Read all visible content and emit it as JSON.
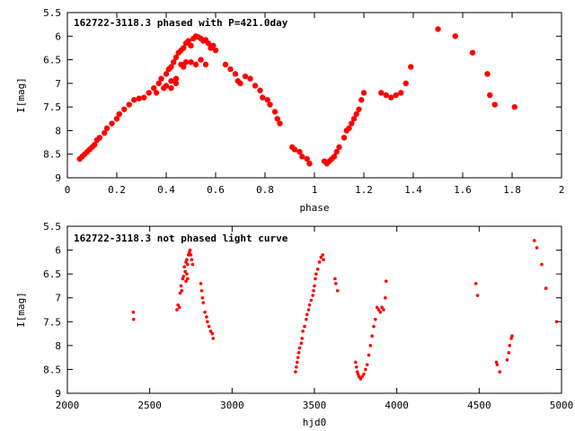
{
  "chart_data": [
    {
      "type": "scatter",
      "title": "162722-3118.3 phased with P=421.0day",
      "xlabel": "phase",
      "ylabel": "I[mag]",
      "xlim": [
        0,
        2
      ],
      "ylim": [
        9,
        5.5
      ],
      "y_inverted": true,
      "xticks": [
        0,
        0.2,
        0.4,
        0.6,
        0.8,
        1,
        1.2,
        1.4,
        1.6,
        1.8,
        2
      ],
      "xtick_labels": [
        "0",
        "0.2",
        "0.4",
        "0.6",
        "0.8",
        "1",
        "1.2",
        "1.4",
        "1.6",
        "1.8",
        "2"
      ],
      "yticks": [
        5.5,
        6,
        6.5,
        7,
        7.5,
        8,
        8.5,
        9
      ],
      "ytick_labels": [
        "5.5",
        "6",
        "6.5",
        "7",
        "7.5",
        "8",
        "8.5",
        "9"
      ],
      "marker_color": "#ff0000",
      "grid": false,
      "points": [
        [
          0.05,
          8.6
        ],
        [
          0.06,
          8.55
        ],
        [
          0.07,
          8.5
        ],
        [
          0.08,
          8.45
        ],
        [
          0.09,
          8.4
        ],
        [
          0.1,
          8.35
        ],
        [
          0.11,
          8.3
        ],
        [
          0.12,
          8.2
        ],
        [
          0.13,
          8.15
        ],
        [
          0.15,
          8.05
        ],
        [
          0.16,
          7.95
        ],
        [
          0.18,
          7.85
        ],
        [
          0.2,
          7.75
        ],
        [
          0.21,
          7.65
        ],
        [
          0.23,
          7.55
        ],
        [
          0.25,
          7.45
        ],
        [
          0.27,
          7.35
        ],
        [
          0.29,
          7.32
        ],
        [
          0.31,
          7.3
        ],
        [
          0.33,
          7.2
        ],
        [
          0.35,
          7.1
        ],
        [
          0.36,
          7.2
        ],
        [
          0.37,
          7.0
        ],
        [
          0.38,
          6.9
        ],
        [
          0.39,
          7.1
        ],
        [
          0.4,
          6.8
        ],
        [
          0.41,
          6.7
        ],
        [
          0.42,
          6.65
        ],
        [
          0.43,
          6.55
        ],
        [
          0.44,
          6.45
        ],
        [
          0.45,
          6.35
        ],
        [
          0.46,
          6.3
        ],
        [
          0.47,
          6.25
        ],
        [
          0.48,
          6.15
        ],
        [
          0.49,
          6.1
        ],
        [
          0.5,
          6.2
        ],
        [
          0.51,
          6.05
        ],
        [
          0.52,
          6.0
        ],
        [
          0.53,
          6.02
        ],
        [
          0.54,
          6.05
        ],
        [
          0.55,
          6.1
        ],
        [
          0.56,
          6.08
        ],
        [
          0.57,
          6.15
        ],
        [
          0.58,
          6.25
        ],
        [
          0.59,
          6.2
        ],
        [
          0.6,
          6.3
        ],
        [
          0.64,
          6.6
        ],
        [
          0.66,
          6.7
        ],
        [
          0.68,
          6.8
        ],
        [
          0.69,
          6.95
        ],
        [
          0.7,
          7.0
        ],
        [
          0.72,
          6.85
        ],
        [
          0.74,
          6.9
        ],
        [
          0.76,
          7.05
        ],
        [
          0.78,
          7.15
        ],
        [
          0.79,
          7.3
        ],
        [
          0.81,
          7.35
        ],
        [
          0.82,
          7.45
        ],
        [
          0.84,
          7.6
        ],
        [
          0.85,
          7.75
        ],
        [
          0.86,
          7.85
        ],
        [
          0.91,
          8.35
        ],
        [
          0.92,
          8.4
        ],
        [
          0.94,
          8.45
        ],
        [
          0.95,
          8.55
        ],
        [
          0.97,
          8.6
        ],
        [
          0.98,
          8.7
        ],
        [
          1.04,
          8.65
        ],
        [
          1.05,
          8.7
        ],
        [
          1.06,
          8.65
        ],
        [
          1.07,
          8.6
        ],
        [
          1.08,
          8.55
        ],
        [
          1.09,
          8.45
        ],
        [
          1.1,
          8.35
        ],
        [
          1.12,
          8.15
        ],
        [
          1.13,
          8.0
        ],
        [
          1.14,
          7.95
        ],
        [
          1.15,
          7.85
        ],
        [
          1.16,
          7.75
        ],
        [
          1.17,
          7.65
        ],
        [
          1.18,
          7.55
        ],
        [
          1.19,
          7.35
        ],
        [
          1.2,
          7.2
        ],
        [
          1.27,
          7.2
        ],
        [
          1.29,
          7.25
        ],
        [
          1.31,
          7.3
        ],
        [
          1.33,
          7.25
        ],
        [
          1.35,
          7.2
        ],
        [
          1.37,
          7.0
        ],
        [
          1.39,
          6.65
        ],
        [
          1.5,
          5.85
        ],
        [
          1.57,
          6.0
        ],
        [
          1.64,
          6.35
        ],
        [
          1.7,
          6.8
        ],
        [
          1.71,
          7.25
        ],
        [
          1.73,
          7.45
        ],
        [
          1.81,
          7.5
        ]
      ],
      "phase_band": [
        [
          0.4,
          7.05
        ],
        [
          0.42,
          6.95
        ],
        [
          0.44,
          6.9
        ],
        [
          0.46,
          6.6
        ],
        [
          0.48,
          6.55
        ],
        [
          0.5,
          6.55
        ],
        [
          0.52,
          6.6
        ],
        [
          0.54,
          6.5
        ],
        [
          0.56,
          6.6
        ],
        [
          0.42,
          7.1
        ],
        [
          0.44,
          7.0
        ],
        [
          0.47,
          6.65
        ]
      ]
    },
    {
      "type": "scatter",
      "title": "162722-3118.3 not phased light curve",
      "xlabel": "hjd0",
      "ylabel": "I[mag]",
      "xlim": [
        2000,
        5000
      ],
      "ylim": [
        9,
        5.5
      ],
      "y_inverted": true,
      "xticks": [
        2000,
        2500,
        3000,
        3500,
        4000,
        4500,
        5000
      ],
      "xtick_labels": [
        "2000",
        "2500",
        "3000",
        "3500",
        "4000",
        "4500",
        "5000"
      ],
      "yticks": [
        5.5,
        6,
        6.5,
        7,
        7.5,
        8,
        8.5,
        9
      ],
      "ytick_labels": [
        "5.5",
        "6",
        "6.5",
        "7",
        "7.5",
        "8",
        "8.5",
        "9"
      ],
      "marker_color": "#ff0000",
      "grid": false,
      "points": [
        [
          2400,
          7.3
        ],
        [
          2402,
          7.45
        ],
        [
          2665,
          7.25
        ],
        [
          2672,
          7.15
        ],
        [
          2680,
          7.2
        ],
        [
          2685,
          6.9
        ],
        [
          2690,
          6.75
        ],
        [
          2695,
          6.85
        ],
        [
          2700,
          6.6
        ],
        [
          2705,
          6.55
        ],
        [
          2710,
          6.35
        ],
        [
          2715,
          6.45
        ],
        [
          2720,
          6.25
        ],
        [
          2725,
          6.2
        ],
        [
          2730,
          6.3
        ],
        [
          2735,
          6.1
        ],
        [
          2740,
          6.05
        ],
        [
          2745,
          6.0
        ],
        [
          2750,
          6.1
        ],
        [
          2755,
          6.2
        ],
        [
          2760,
          6.3
        ],
        [
          2720,
          6.65
        ],
        [
          2725,
          6.5
        ],
        [
          2730,
          6.6
        ],
        [
          2810,
          6.7
        ],
        [
          2815,
          6.85
        ],
        [
          2820,
          7.0
        ],
        [
          2825,
          7.1
        ],
        [
          2835,
          7.3
        ],
        [
          2845,
          7.4
        ],
        [
          2850,
          7.5
        ],
        [
          2860,
          7.6
        ],
        [
          2870,
          7.7
        ],
        [
          2880,
          7.75
        ],
        [
          2885,
          7.85
        ],
        [
          3385,
          8.55
        ],
        [
          3390,
          8.45
        ],
        [
          3395,
          8.35
        ],
        [
          3400,
          8.25
        ],
        [
          3405,
          8.15
        ],
        [
          3410,
          8.05
        ],
        [
          3420,
          7.95
        ],
        [
          3425,
          7.85
        ],
        [
          3430,
          7.7
        ],
        [
          3440,
          7.6
        ],
        [
          3450,
          7.45
        ],
        [
          3455,
          7.35
        ],
        [
          3465,
          7.25
        ],
        [
          3470,
          7.15
        ],
        [
          3480,
          7.05
        ],
        [
          3490,
          6.95
        ],
        [
          3495,
          6.85
        ],
        [
          3500,
          6.75
        ],
        [
          3505,
          6.6
        ],
        [
          3510,
          6.5
        ],
        [
          3520,
          6.4
        ],
        [
          3530,
          6.25
        ],
        [
          3540,
          6.15
        ],
        [
          3550,
          6.1
        ],
        [
          3555,
          6.2
        ],
        [
          3625,
          6.6
        ],
        [
          3630,
          6.7
        ],
        [
          3640,
          6.85
        ],
        [
          3750,
          8.35
        ],
        [
          3755,
          8.45
        ],
        [
          3760,
          8.55
        ],
        [
          3765,
          8.6
        ],
        [
          3770,
          8.65
        ],
        [
          3780,
          8.7
        ],
        [
          3790,
          8.65
        ],
        [
          3800,
          8.6
        ],
        [
          3810,
          8.5
        ],
        [
          3820,
          8.4
        ],
        [
          3830,
          8.2
        ],
        [
          3840,
          8.0
        ],
        [
          3850,
          7.8
        ],
        [
          3860,
          7.6
        ],
        [
          3870,
          7.45
        ],
        [
          3880,
          7.2
        ],
        [
          3890,
          7.25
        ],
        [
          3900,
          7.3
        ],
        [
          3910,
          7.2
        ],
        [
          3920,
          7.25
        ],
        [
          3930,
          7.0
        ],
        [
          3935,
          6.65
        ],
        [
          4480,
          6.7
        ],
        [
          4490,
          6.95
        ],
        [
          4605,
          8.35
        ],
        [
          4610,
          8.4
        ],
        [
          4625,
          8.55
        ],
        [
          4670,
          8.3
        ],
        [
          4680,
          8.15
        ],
        [
          4685,
          8.0
        ],
        [
          4695,
          7.85
        ],
        [
          4700,
          7.8
        ],
        [
          4835,
          5.8
        ],
        [
          4850,
          5.95
        ],
        [
          4880,
          6.3
        ],
        [
          4905,
          6.8
        ],
        [
          4970,
          7.5
        ]
      ]
    }
  ]
}
